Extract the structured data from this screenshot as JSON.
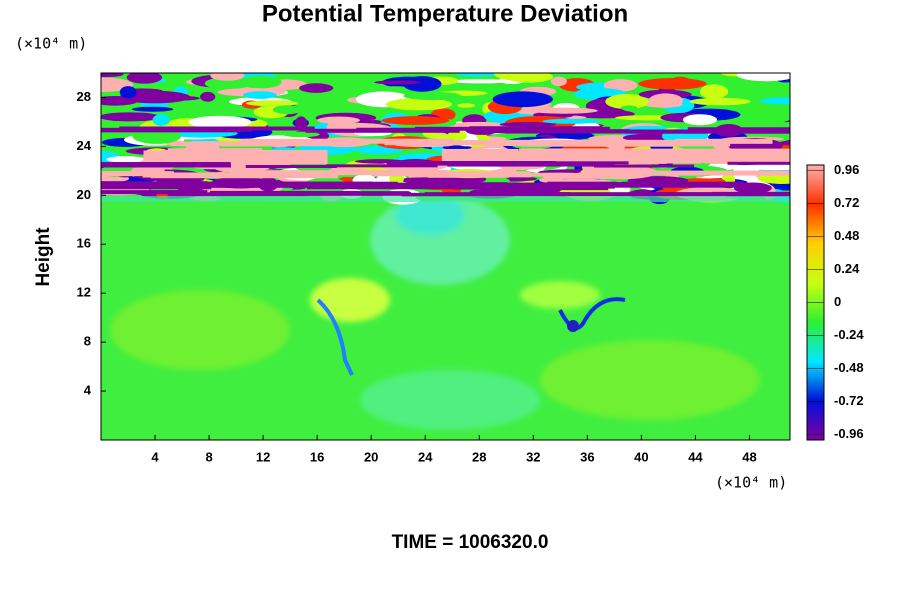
{
  "chart_data": {
    "type": "heatmap",
    "title": "Potential Temperature Deviation",
    "y_label": "Height",
    "y_unit": "(×10⁴ m)",
    "x_unit": "(×10⁴ m)",
    "annotation": "TIME = 1006320.0",
    "xlim": [
      0,
      51
    ],
    "xticks": [
      4,
      8,
      12,
      16,
      20,
      24,
      28,
      32,
      36,
      40,
      44,
      48
    ],
    "ylim": [
      0,
      30
    ],
    "yticks": [
      4,
      8,
      12,
      16,
      20,
      24,
      28
    ],
    "clim": [
      -1,
      1
    ],
    "colorbar_ticks": [
      0.96,
      0.72,
      0.48,
      0.24,
      0,
      -0.24,
      -0.48,
      -0.72,
      -0.96
    ],
    "colormap": [
      "#8000a0",
      "#0010d8",
      "#00e8ff",
      "#30f030",
      "#c8ff10",
      "#ffd000",
      "#ff3000",
      "#ffb0b0"
    ]
  }
}
